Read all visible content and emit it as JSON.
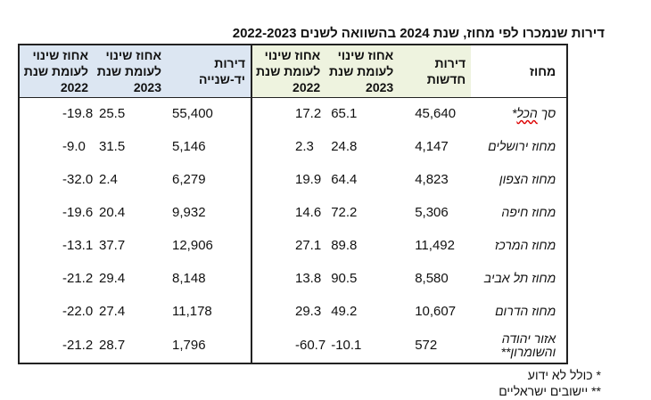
{
  "title": "דירות שנמכרו לפי מחוז, שנת 2024 בהשוואה לשנים 2022-2023",
  "headers": {
    "district": "מחוז",
    "new_units": "דירות חדשות",
    "new_pct_2023": "אחוז שינוי לעומת שנת 2023",
    "new_pct_2022": "אחוז שינוי לעומת שנת 2022",
    "used_units": "דירות יד-שנייה",
    "used_pct_2023": "אחוז שינוי לעומת שנת 2023",
    "used_pct_2022": "אחוז שינוי לעומת שנת 2022"
  },
  "rows": [
    {
      "district_prefix": "סך ",
      "district_underlined": "הכל",
      "district_suffix": "*",
      "new": "45,640",
      "new23": "65.1",
      "new22": "17.2",
      "used": "55,400",
      "used23": "25.5",
      "used22": "-19.8"
    },
    {
      "district": "מחוז ירושלים",
      "new": "4,147",
      "new23": "24.8",
      "new22": "2.3",
      "used": "5,146",
      "used23": "31.5",
      "used22": "-9.0"
    },
    {
      "district": "מחוז הצפון",
      "new": "4,823",
      "new23": "64.4",
      "new22": "19.9",
      "used": "6,279",
      "used23": "2.4",
      "used22": "-32.0"
    },
    {
      "district": "מחוז חיפה",
      "new": "5,306",
      "new23": "72.2",
      "new22": "14.6",
      "used": "9,932",
      "used23": "20.4",
      "used22": "-19.6"
    },
    {
      "district": "מחוז המרכז",
      "new": "11,492",
      "new23": "89.8",
      "new22": "27.1",
      "used": "12,906",
      "used23": "37.7",
      "used22": "-13.1"
    },
    {
      "district": "מחוז תל אביב",
      "new": "8,580",
      "new23": "90.5",
      "new22": "13.8",
      "used": "8,148",
      "used23": "29.4",
      "used22": "-21.2"
    },
    {
      "district": "מחוז הדרום",
      "new": "10,607",
      "new23": "49.2",
      "new22": "29.3",
      "used": "11,178",
      "used23": "27.4",
      "used22": "-22.0"
    },
    {
      "district": "אזור יהודה והשומרון**",
      "new": "572",
      "new23": "-10.1",
      "new22": "-60.7",
      "used": "1,796",
      "used23": "28.7",
      "used22": "-21.2"
    }
  ],
  "footnotes": [
    "* כולל לא ידוע",
    "** יישובים ישראליים"
  ],
  "colors": {
    "new_header_bg": "#eef3df",
    "used_header_bg": "#dce6f2",
    "border": "#222222"
  }
}
